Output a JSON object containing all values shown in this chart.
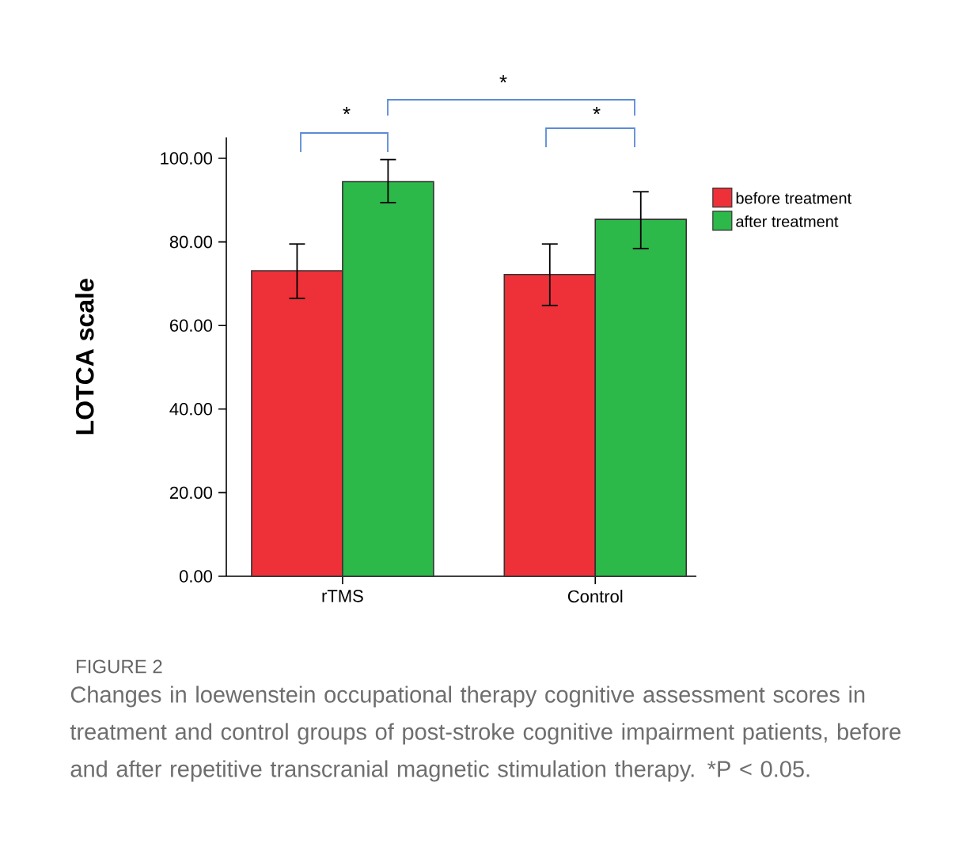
{
  "chart_data": {
    "type": "bar",
    "categories": [
      "rTMS",
      "Control"
    ],
    "ylabel": "LOTCA scale",
    "series": [
      {
        "name": "before treatment",
        "color": "#ee3139",
        "values": [
          73.1,
          72.2
        ],
        "errors": [
          [
            66.5,
            79.5
          ],
          [
            64.8,
            79.5
          ]
        ]
      },
      {
        "name": "after treatment",
        "color": "#2db84a",
        "values": [
          94.4,
          85.4
        ],
        "errors": [
          [
            89.4,
            99.7
          ],
          [
            78.4,
            92.0
          ]
        ]
      }
    ],
    "ylim": [
      0,
      105
    ],
    "yticks": [
      {
        "value": 0,
        "label": "0.00"
      },
      {
        "value": 20,
        "label": "20.00"
      },
      {
        "value": 40,
        "label": "40.00"
      },
      {
        "value": 60,
        "label": "60.00"
      },
      {
        "value": 80,
        "label": "80.00"
      },
      {
        "value": 100,
        "label": "100.00"
      }
    ],
    "legend": "right",
    "grid": false,
    "annotations": [
      "*",
      "*",
      "*",
      "FIGURE 2",
      "Changes in loewenstein occupational therapy cognitive assessment scores in treatment and control groups of post-stroke cognitive impairment patients, before and after repetitive transcranial magnetic stimulation therapy. *P < 0.05."
    ]
  }
}
